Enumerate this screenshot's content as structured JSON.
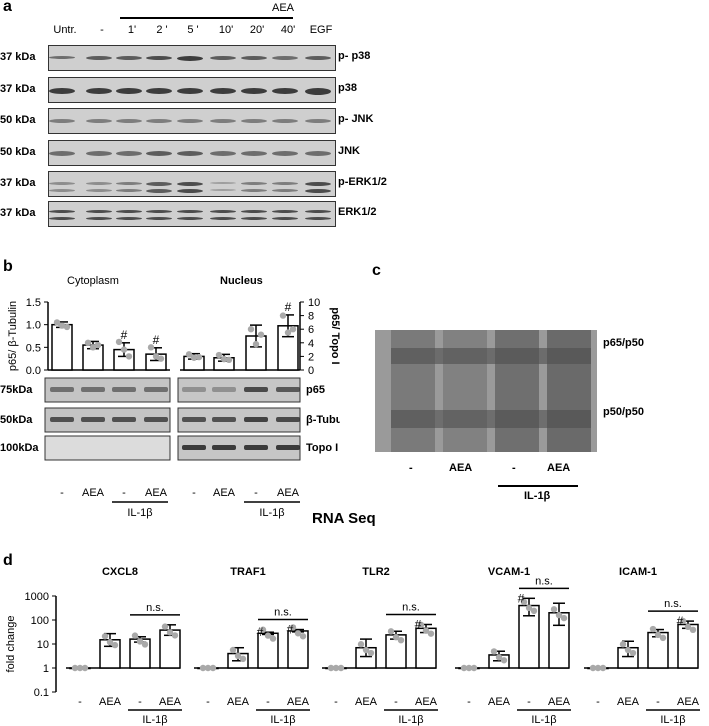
{
  "panel_a": {
    "label": "a",
    "treatment_header": "AEA",
    "lanes": [
      "Untr.",
      "-",
      "1'",
      "2 '",
      "5 '",
      "10'",
      "20'",
      "40'",
      "EGF"
    ],
    "rows": [
      {
        "size": "37 kDa",
        "target": "p- p38"
      },
      {
        "size": "37 kDa",
        "target": "p38"
      },
      {
        "size": "50 kDa",
        "target": "p- JNK"
      },
      {
        "size": "50 kDa",
        "target": "JNK"
      },
      {
        "size": "37 kDa",
        "target": "p-ERK1/2"
      },
      {
        "size": "37 kDa",
        "target": "ERK1/2"
      }
    ]
  },
  "panel_b": {
    "label": "b",
    "cytoplasm_title": "Cytoplasm",
    "nucleus_title": "Nucleus",
    "ylabel_left": "p65/ β-Tubulin",
    "ylabel_right": "p65/ Topo I",
    "blot_rows": [
      {
        "size": "75kDa",
        "target": "p65"
      },
      {
        "size": "50kDa",
        "target": "β-Tubulin"
      },
      {
        "size": "100kDa",
        "target": "Topo I"
      }
    ],
    "lane_labels": [
      "-",
      "AEA",
      "-",
      "AEA"
    ],
    "il1b": "IL-1β"
  },
  "panel_c": {
    "label": "c",
    "band_top": "p65/p50",
    "band_bottom": "p50/p50",
    "lane_labels": [
      "-",
      "AEA",
      "-",
      "AEA"
    ],
    "il1b": "IL-1β"
  },
  "panel_d": {
    "label": "d",
    "title": "RNA Seq",
    "ylabel": "fold change",
    "ns": "n.s.",
    "hash": "#",
    "lane_labels": [
      "-",
      "AEA",
      "-",
      "AEA"
    ],
    "il1b": "IL-1β"
  },
  "chart_data": [
    {
      "type": "bar",
      "panel": "b-cytoplasm",
      "categories": [
        "-",
        "AEA",
        "IL-1β -",
        "IL-1β AEA"
      ],
      "values": [
        1.0,
        0.55,
        0.45,
        0.35
      ],
      "errors": [
        0.06,
        0.08,
        0.15,
        0.14
      ],
      "points": [
        [
          1.05,
          0.98,
          0.95
        ],
        [
          0.6,
          0.5,
          0.55
        ],
        [
          0.62,
          0.45,
          0.3
        ],
        [
          0.5,
          0.3,
          0.25
        ]
      ],
      "significance": [
        "",
        "",
        "#",
        "#"
      ],
      "ylabel": "p65/ β-Tubulin",
      "ylim": [
        0,
        1.5
      ],
      "yticks": [
        "0.0",
        "0.5",
        "1.0",
        "1.5"
      ]
    },
    {
      "type": "bar",
      "panel": "b-nucleus",
      "categories": [
        "-",
        "AEA",
        "IL-1β -",
        "IL-1β AEA"
      ],
      "values": [
        2.0,
        1.8,
        5.0,
        6.5
      ],
      "errors": [
        0.4,
        0.5,
        1.6,
        1.6
      ],
      "points": [
        [
          2.3,
          1.8,
          1.9
        ],
        [
          2.2,
          1.6,
          1.5
        ],
        [
          6.0,
          3.8,
          5.2
        ],
        [
          8.0,
          5.5,
          6.0
        ]
      ],
      "significance": [
        "",
        "",
        "",
        "#"
      ],
      "ylabel": "p65/ Topo I",
      "ylim": [
        0,
        10
      ],
      "yticks": [
        "0",
        "2",
        "4",
        "6",
        "8",
        "10"
      ]
    },
    {
      "type": "bar",
      "panel": "d",
      "log_scale": true,
      "ylabel": "fold change",
      "ylim": [
        0.1,
        1000
      ],
      "yticks": [
        "1000",
        "100",
        "10",
        "1",
        "0.1"
      ],
      "categories": [
        "-",
        "AEA",
        "IL-1β -",
        "IL-1β AEA"
      ],
      "genes": [
        {
          "name": "CXCL8",
          "values": [
            1,
            15,
            16,
            38
          ],
          "errors_low": [
            0,
            7,
            4,
            15
          ],
          "errors_high": [
            0,
            12,
            4,
            25
          ],
          "significance": [
            "",
            "",
            "",
            ""
          ],
          "ns": true
        },
        {
          "name": "TRAF1",
          "values": [
            1,
            4,
            28,
            35
          ],
          "errors_low": [
            0,
            2,
            3,
            3
          ],
          "errors_high": [
            0,
            3,
            3,
            5
          ],
          "significance": [
            "",
            "",
            "#",
            "#"
          ],
          "ns": true
        },
        {
          "name": "TLR2",
          "values": [
            1,
            7,
            24,
            45
          ],
          "errors_low": [
            0,
            4,
            8,
            15
          ],
          "errors_high": [
            0,
            9,
            10,
            20
          ],
          "significance": [
            "",
            "",
            "",
            "#"
          ],
          "ns": true
        },
        {
          "name": "VCAM-1",
          "values": [
            1,
            3.5,
            400,
            200
          ],
          "errors_low": [
            0,
            1.5,
            250,
            140
          ],
          "errors_high": [
            0,
            1.5,
            400,
            300
          ],
          "significance": [
            "",
            "",
            "#",
            ""
          ],
          "ns": true
        },
        {
          "name": "ICAM-1",
          "values": [
            1,
            7,
            30,
            65
          ],
          "errors_low": [
            0,
            4,
            10,
            20
          ],
          "errors_high": [
            0,
            6,
            10,
            25
          ],
          "significance": [
            "",
            "",
            "",
            "#"
          ],
          "ns": true
        }
      ]
    }
  ],
  "colors": {
    "bar_fill": "#ffffff",
    "bar_stroke": "#000000",
    "points": "#a9a9a9"
  }
}
